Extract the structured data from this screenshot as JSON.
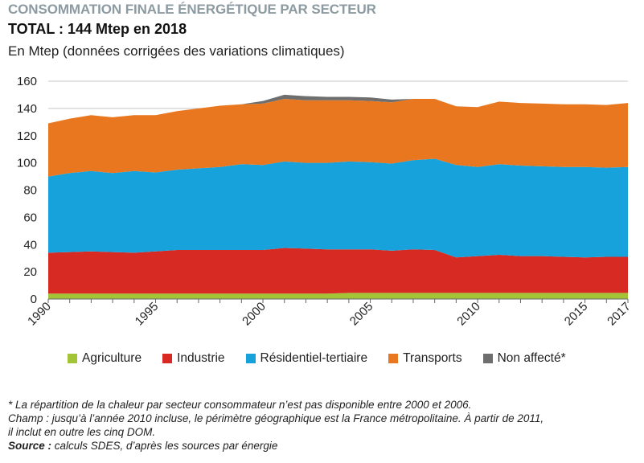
{
  "header": {
    "kicker": "CONSOMMATION FINALE ÉNERGÉTIQUE PAR SECTEUR",
    "total": "TOTAL : 144 Mtep en 2018",
    "unit": "En Mtep (données corrigées des variations climatiques)"
  },
  "chart_data": {
    "type": "area",
    "stacked": true,
    "title": "",
    "xlabel": "",
    "ylabel": "",
    "ylim": [
      0,
      160
    ],
    "yticks": [
      0,
      20,
      40,
      60,
      80,
      100,
      120,
      140,
      160
    ],
    "x": [
      1990,
      1991,
      1992,
      1993,
      1994,
      1995,
      1996,
      1997,
      1998,
      1999,
      2000,
      2001,
      2002,
      2003,
      2004,
      2005,
      2006,
      2007,
      2008,
      2009,
      2010,
      2011,
      2012,
      2013,
      2014,
      2015,
      2016,
      2017
    ],
    "xticks": [
      "1990",
      "1995",
      "2000",
      "2005",
      "2010",
      "2015",
      "2017"
    ],
    "grid": "horizontal",
    "legend_position": "bottom",
    "series": [
      {
        "name": "Agriculture",
        "color": "#a3c437",
        "values": [
          4,
          4,
          4,
          4,
          4,
          4,
          4,
          4,
          4,
          4,
          4,
          4,
          4,
          4,
          4.5,
          4.5,
          4.5,
          4.5,
          4.5,
          4.5,
          4.5,
          4.5,
          4.5,
          4.5,
          4.5,
          4.5,
          4.5,
          4.5
        ]
      },
      {
        "name": "Industrie",
        "color": "#d62a22",
        "values": [
          30,
          30.5,
          31,
          30.5,
          30,
          31,
          32,
          32,
          32,
          32,
          32,
          33.5,
          33,
          32.5,
          32,
          32,
          31,
          32,
          31.5,
          26,
          27,
          28,
          27,
          27,
          26.5,
          26,
          26.5,
          26.5
        ]
      },
      {
        "name": "Résidentiel-tertiaire",
        "color": "#17a2dc",
        "values": [
          56,
          58,
          59,
          58,
          60,
          58,
          59,
          60,
          61,
          63,
          62.5,
          63.5,
          63,
          63.5,
          64.5,
          64,
          64,
          65.5,
          67,
          68,
          65.5,
          66.5,
          66.5,
          66,
          66,
          66.5,
          65.5,
          66
        ]
      },
      {
        "name": "Transports",
        "color": "#e8771f",
        "values": [
          39,
          40,
          41,
          41,
          41,
          42,
          43,
          44,
          45,
          44,
          45,
          46,
          46,
          46,
          45,
          45,
          45,
          45,
          44,
          43,
          44,
          46,
          46,
          46,
          46,
          46,
          46,
          47
        ]
      },
      {
        "name": "Non affecté*",
        "color": "#6e6e6e",
        "values": [
          0,
          0,
          0,
          0,
          0,
          0,
          0,
          0,
          0,
          0,
          2,
          3,
          3,
          2.5,
          2.5,
          2.5,
          2,
          0,
          0,
          0,
          0,
          0,
          0,
          0,
          0,
          0,
          0,
          0
        ]
      }
    ]
  },
  "notes": {
    "line1": "* La répartition de la chaleur par secteur consommateur n’est pas disponible entre 2000 et 2006.",
    "line2": "Champ : jusqu’à l’année 2010 incluse, le périmètre géographique est la France métropolitaine. À partir de 2011,",
    "line3": "il inclut en outre les cinq DOM.",
    "source_label": "Source :",
    "source_text": " calculs SDES, d’après les sources par énergie"
  }
}
